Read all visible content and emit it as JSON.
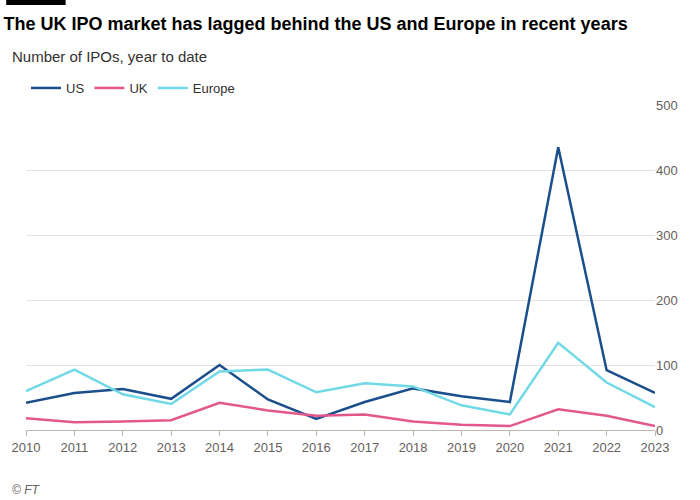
{
  "chart_data": {
    "type": "line",
    "title": "The UK IPO market has lagged behind the US and Europe in recent years",
    "subtitle": "Number of IPOs, year to date",
    "source": "© FT",
    "x": [
      2010,
      2011,
      2012,
      2013,
      2014,
      2015,
      2016,
      2017,
      2018,
      2019,
      2020,
      2021,
      2022,
      2023
    ],
    "series": [
      {
        "name": "US",
        "color": "#1b4f8c",
        "values": [
          42,
          57,
          63,
          48,
          100,
          47,
          17,
          43,
          64,
          52,
          43,
          435,
          92,
          57
        ]
      },
      {
        "name": "UK",
        "color": "#e3578b",
        "values": [
          18,
          12,
          13,
          15,
          42,
          30,
          22,
          24,
          13,
          8,
          6,
          32,
          22,
          6
        ]
      },
      {
        "name": "Europe",
        "color": "#71d9e6",
        "values": [
          60,
          93,
          55,
          40,
          90,
          93,
          58,
          72,
          67,
          38,
          24,
          134,
          73,
          35
        ]
      }
    ],
    "xlim": [
      2010,
      2023
    ],
    "xticks": [
      2010,
      2011,
      2012,
      2013,
      2014,
      2015,
      2016,
      2017,
      2018,
      2019,
      2020,
      2021,
      2022,
      2023
    ],
    "ylim": [
      0,
      500
    ],
    "yticks": [
      0,
      100,
      200,
      300,
      400,
      500
    ],
    "grid": true,
    "legend": "top left"
  }
}
